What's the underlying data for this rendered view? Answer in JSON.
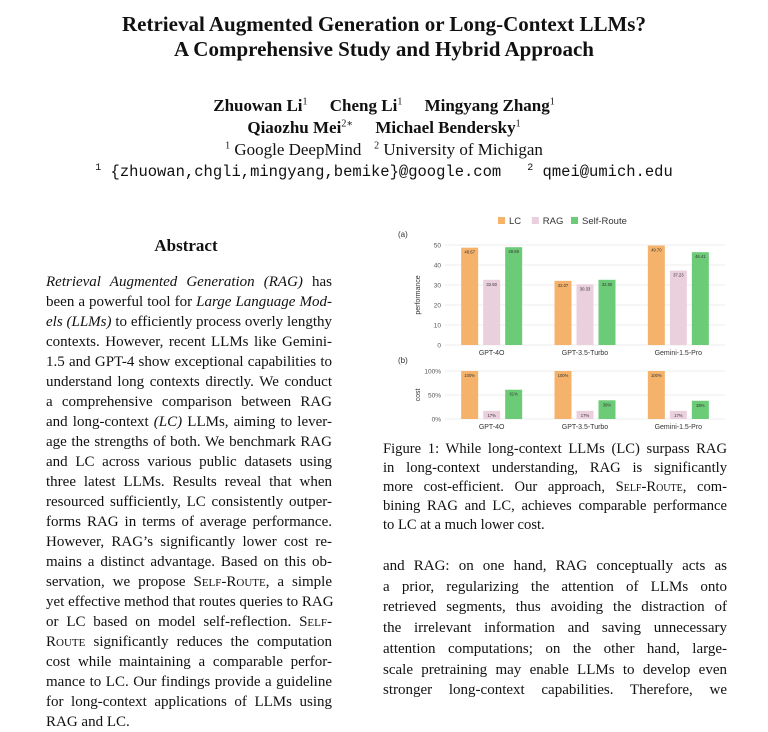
{
  "paper": {
    "title_line1": "Retrieval Augmented Generation or Long-Context LLMs?",
    "title_line2": "A Comprehensive Study and Hybrid Approach",
    "authors": [
      {
        "name": "Zhuowan Li",
        "sup": "1"
      },
      {
        "name": "Cheng Li",
        "sup": "1"
      },
      {
        "name": "Mingyang Zhang",
        "sup": "1"
      },
      {
        "name": "Qiaozhu Mei",
        "sup": "2∗"
      },
      {
        "name": "Michael Bendersky",
        "sup": "1"
      }
    ],
    "affiliations": [
      {
        "sup": "1",
        "name": "Google DeepMind"
      },
      {
        "sup": "2",
        "name": "University of Michigan"
      }
    ],
    "emails": [
      {
        "sup": "1",
        "text": "{zhuowan,chgli,mingyang,bemike}@google.com"
      },
      {
        "sup": "2",
        "text": "qmei@umich.edu"
      }
    ]
  },
  "abstract": {
    "heading": "Abstract",
    "lines": [
      "<i>Retrieval Augmented Generation (RAG)</i> has",
      "been a powerful tool for <i>Large Language Mod-</i>",
      "<i>els (LLMs)</i> to efficiently process overly lengthy",
      "contexts. However, recent LLMs like Gemini-",
      "1.5 and GPT-4 show exceptional capabilities to",
      "understand long contexts directly. We conduct",
      "a comprehensive comparison between RAG",
      "and long-context <i>(LC)</i> LLMs, aiming to lever-",
      "age the strengths of both. We benchmark RAG",
      "and LC across various public datasets using",
      "three latest LLMs. Results reveal that when",
      "resourced sufficiently, LC consistently outper-",
      "forms RAG in terms of average performance.",
      "However, RAG’s significantly lower cost re-",
      "mains a distinct advantage. Based on this ob-",
      "servation, we propose <span class=\"sc\">Self-Route</span>, a simple",
      "yet effective method that routes queries to RAG",
      "or LC based on model self-reflection. <span class=\"sc\">Self-</span>",
      "<span class=\"sc\">Route</span> significantly reduces the computation",
      "cost while maintaining a comparable perfor-",
      "mance to LC. Our findings provide a guideline",
      "for long-context applications of LLMs using",
      "RAG and LC."
    ]
  },
  "figure": {
    "caption_lines": [
      "Figure 1: While long-context LLMs (LC) surpass RAG",
      "in long-context understanding, RAG is significantly",
      "more cost-efficient. Our approach, <span class=\"sc\">Self-Route</span>, com-",
      "bining RAG and LC, achieves comparable performance",
      "to LC at a much lower cost."
    ]
  },
  "body": {
    "lines": [
      "and RAG: on one hand, RAG conceptually acts as",
      "a prior, regularizing the attention of LLMs onto",
      "retrieved segments, thus avoiding the distraction of",
      "the irrelevant information and saving unnecessary",
      "attention computations; on the other hand, large-",
      "scale pretraining may enable LLMs to develop even",
      "stronger long-context capabilities. Therefore, we"
    ]
  },
  "chart_data": [
    {
      "type": "bar",
      "panel_label": "(a)",
      "ylabel": "performance",
      "ylim": [
        0,
        50
      ],
      "yticks": [
        0,
        10,
        20,
        30,
        40,
        50
      ],
      "categories": [
        "GPT-4O",
        "GPT-3.5-Turbo",
        "Gemini-1.5-Pro"
      ],
      "series": [
        {
          "name": "LC",
          "color": "#f4b26b",
          "values": [
            48.67,
            32.07,
            49.7
          ],
          "labels": [
            "48.67",
            "32.07",
            "49.70"
          ]
        },
        {
          "name": "RAG",
          "color": "#eacfdc",
          "values": [
            32.6,
            30.33,
            37.23
          ],
          "labels": [
            "32.60",
            "30.33",
            "37.23"
          ]
        },
        {
          "name": "Self-Route",
          "color": "#6ccb77",
          "values": [
            48.89,
            32.6,
            46.41
          ],
          "labels": [
            "48.89",
            "32.60",
            "46.41"
          ]
        }
      ],
      "legend": "top",
      "grid": true
    },
    {
      "type": "bar",
      "panel_label": "(b)",
      "ylabel": "cost",
      "ylim": [
        0,
        100
      ],
      "yticks": [
        0,
        50,
        100
      ],
      "ytick_labels": [
        "0%",
        "50%",
        "100%"
      ],
      "categories": [
        "GPT-4O",
        "GPT-3.5-Turbo",
        "Gemini-1.5-Pro"
      ],
      "series": [
        {
          "name": "LC",
          "color": "#f4b26b",
          "values": [
            100,
            100,
            100
          ],
          "labels": [
            "100%",
            "100%",
            "100%"
          ]
        },
        {
          "name": "RAG",
          "color": "#eacfdc",
          "values": [
            17,
            17,
            17
          ],
          "labels": [
            "17%",
            "17%",
            "17%"
          ]
        },
        {
          "name": "Self-Route",
          "color": "#6ccb77",
          "values": [
            61,
            39,
            38
          ],
          "labels": [
            "61%",
            "39%",
            "38%"
          ]
        }
      ],
      "grid": true
    }
  ]
}
